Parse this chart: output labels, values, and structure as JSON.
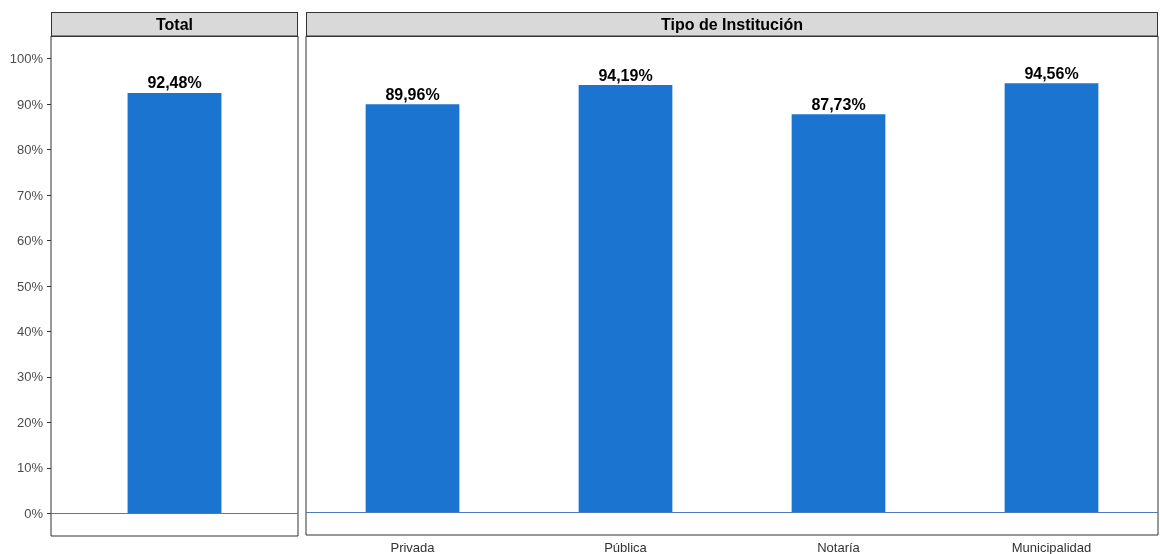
{
  "chart_data": [
    {
      "type": "bar",
      "title": "Total",
      "categories": [
        null
      ],
      "series": [
        {
          "color": "#1b75d0",
          "values": [
            92.48
          ],
          "value_labels": [
            "92,48%"
          ]
        }
      ],
      "ylim": [
        -5,
        105
      ],
      "yticks": [
        {
          "value": 0,
          "label": "0%"
        },
        {
          "value": 10,
          "label": "10%"
        },
        {
          "value": 20,
          "label": "20%"
        },
        {
          "value": 30,
          "label": "30%"
        },
        {
          "value": 40,
          "label": "40%"
        },
        {
          "value": 50,
          "label": "50%"
        },
        {
          "value": 60,
          "label": "60%"
        },
        {
          "value": 70,
          "label": "70%"
        },
        {
          "value": 80,
          "label": "80%"
        },
        {
          "value": 90,
          "label": "90%"
        },
        {
          "value": 100,
          "label": "100%"
        }
      ],
      "ref_lines": [
        {
          "axis": "y",
          "value": 0,
          "color": "#4f79b8"
        }
      ],
      "grid": false,
      "tick_labels": "y"
    },
    {
      "type": "bar",
      "title": "Tipo de Institución",
      "categories": [
        "Privada",
        "Pública",
        "Notaría",
        "Municipalidad"
      ],
      "series": [
        {
          "color": "#1b75d0",
          "values": [
            89.96,
            94.19,
            87.73,
            94.56
          ],
          "value_labels": [
            "89,96%",
            "94,19%",
            "87,73%",
            "94,56%"
          ]
        }
      ],
      "ylim": [
        -5,
        105
      ],
      "ref_lines": [
        {
          "axis": "y",
          "value": 0,
          "color": "#4f79b8"
        }
      ],
      "grid": false,
      "tick_labels": "x"
    }
  ]
}
